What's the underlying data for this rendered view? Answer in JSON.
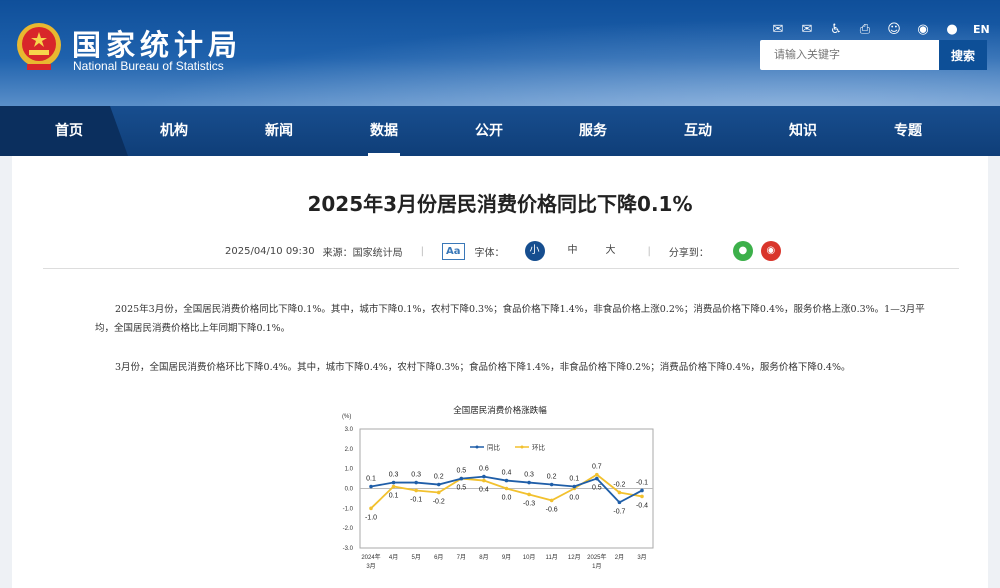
{
  "header": {
    "logo_cn": "国家统计局",
    "logo_en": "National Bureau of Statistics",
    "tools": [
      {
        "icon": "mail-icon",
        "glyph": "✉"
      },
      {
        "icon": "mail-settings-icon",
        "glyph": "✉"
      },
      {
        "icon": "accessibility-icon",
        "glyph": "♿"
      },
      {
        "icon": "print-icon",
        "glyph": "⎙"
      },
      {
        "icon": "robot-icon",
        "glyph": "☺"
      },
      {
        "icon": "weibo-icon",
        "glyph": "◉"
      },
      {
        "icon": "wechat-icon",
        "glyph": "●"
      }
    ],
    "lang": "EN",
    "search_placeholder": "请输入关键字",
    "search_button": "搜索"
  },
  "nav": {
    "items": [
      "首页",
      "机构",
      "新闻",
      "数据",
      "公开",
      "服务",
      "互动",
      "知识",
      "专题"
    ],
    "active": "数据"
  },
  "article": {
    "title": "2025年3月份居民消费价格同比下降0.1%",
    "date": "2025/04/10 09:30",
    "source": "来源：国家统计局",
    "font_label": "字体：",
    "font_sizes": [
      "小",
      "中",
      "大"
    ],
    "aa": "Aa",
    "share_label": "分享到：",
    "paragraphs": [
      "2025年3月份，全国居民消费价格同比下降0.1%。其中，城市下降0.1%，农村下降0.3%；食品价格下降1.4%，非食品价格上涨0.2%；消费品价格下降0.4%，服务价格上涨0.3%。1—3月平均，全国居民消费价格比上年同期下降0.1%。",
      "3月份，全国居民消费价格环比下降0.4%。其中，城市下降0.4%，农村下降0.3%；食品价格下降1.4%，非食品价格下降0.2%；消费品价格下降0.4%，服务价格下降0.4%。"
    ]
  },
  "chart_data": {
    "type": "line",
    "title": "全国居民消费价格涨跌幅",
    "ylabel": "(%)",
    "ylim": [
      -3,
      3
    ],
    "yticks": [
      "3.0",
      "2.0",
      "1.0",
      "0.0",
      "-1.0",
      "-2.0",
      "-3.0"
    ],
    "categories": [
      [
        "2024年",
        "3月"
      ],
      [
        "4月"
      ],
      [
        "5月"
      ],
      [
        "6月"
      ],
      [
        "7月"
      ],
      [
        "8月"
      ],
      [
        "9月"
      ],
      [
        "10月"
      ],
      [
        "11月"
      ],
      [
        "12月"
      ],
      [
        "2025年",
        "1月"
      ],
      [
        "2月"
      ],
      [
        "3月"
      ]
    ],
    "legend": "top-center",
    "series": [
      {
        "name": "同比",
        "color": "#1f5ea8",
        "values": [
          0.1,
          0.3,
          0.3,
          0.2,
          0.5,
          0.6,
          0.4,
          0.3,
          0.2,
          0.1,
          0.5,
          -0.7,
          -0.1
        ]
      },
      {
        "name": "环比",
        "color": "#f2c12e",
        "values": [
          -1.0,
          0.1,
          -0.1,
          -0.2,
          0.5,
          0.4,
          0.0,
          -0.3,
          -0.6,
          0.0,
          0.7,
          -0.2,
          -0.4
        ]
      }
    ]
  }
}
